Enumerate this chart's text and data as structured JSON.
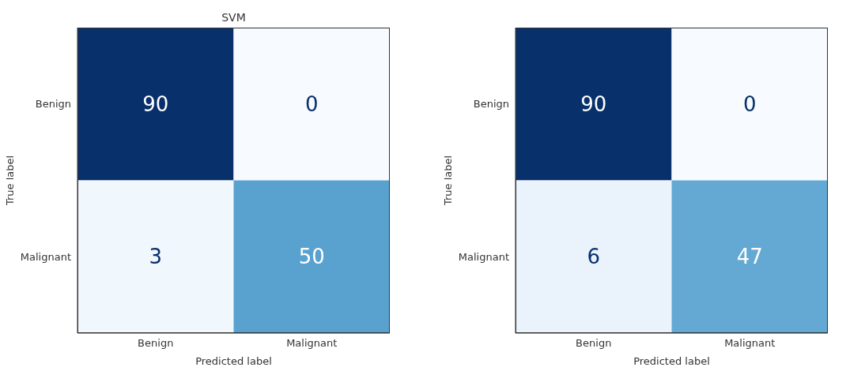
{
  "chart_data": [
    {
      "type": "heatmap",
      "title": "SVM",
      "xlabel": "Predicted label",
      "ylabel": "True label",
      "categories": [
        "Benign",
        "Malignant"
      ],
      "y_categories": [
        "Benign",
        "Malignant"
      ],
      "cells": [
        [
          90,
          0
        ],
        [
          3,
          50
        ]
      ],
      "data_labels": true,
      "grid": false
    },
    {
      "type": "heatmap",
      "xlabel": "Predicted label",
      "ylabel": "True label",
      "categories": [
        "Benign",
        "Malignant"
      ],
      "y_categories": [
        "Benign",
        "Malignant"
      ],
      "cells": [
        [
          90,
          0
        ],
        [
          6,
          47
        ]
      ],
      "data_labels": true,
      "grid": false
    }
  ]
}
